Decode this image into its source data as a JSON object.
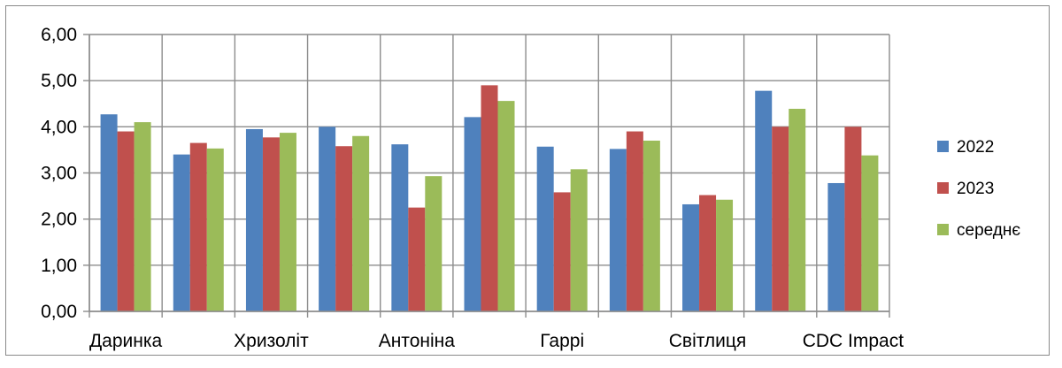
{
  "chart_data": {
    "type": "bar",
    "categories": [
      "Даринка",
      "",
      "Хризоліт",
      "",
      "Антоніна",
      "",
      "Гаррі",
      "",
      "Світлиця",
      "",
      "CDC Impact"
    ],
    "category_labels_shown": [
      "Даринка",
      "Хризоліт",
      "Антоніна",
      "Гаррі",
      "Світлиця",
      "CDC Impact"
    ],
    "series": [
      {
        "name": "2022",
        "color": "#4f81bd",
        "values": [
          4.27,
          3.4,
          3.95,
          4.0,
          3.62,
          4.21,
          3.57,
          3.52,
          2.32,
          4.78,
          2.78
        ]
      },
      {
        "name": "2023",
        "color": "#c0504d",
        "values": [
          3.9,
          3.65,
          3.77,
          3.58,
          2.25,
          4.9,
          2.58,
          3.9,
          2.52,
          4.0,
          4.0
        ]
      },
      {
        "name": "середнє",
        "color": "#9bbb59",
        "values": [
          4.1,
          3.53,
          3.87,
          3.8,
          2.93,
          4.56,
          3.08,
          3.7,
          2.42,
          4.39,
          3.38
        ]
      }
    ],
    "ylim": [
      0,
      6
    ],
    "yticks": [
      "0,00",
      "1,00",
      "2,00",
      "3,00",
      "4,00",
      "5,00",
      "6,00"
    ],
    "grid": true,
    "legend_position": "right"
  }
}
